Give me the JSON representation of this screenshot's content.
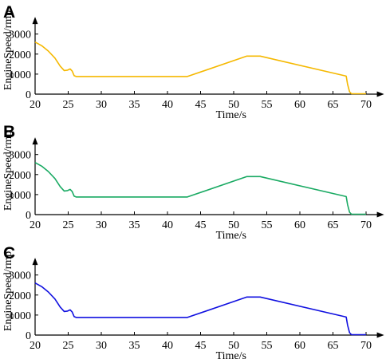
{
  "chart_data": [
    {
      "type": "line",
      "panel_label": "A",
      "xlabel": "Time/s",
      "ylabel": "EngineSpeed/rmp",
      "xlim": [
        20,
        72
      ],
      "ylim": [
        0,
        3700
      ],
      "xticks": [
        20,
        25,
        30,
        35,
        40,
        45,
        50,
        55,
        60,
        65,
        70
      ],
      "yticks": [
        0,
        1000,
        2000,
        3000
      ],
      "grid": false,
      "color": "#f5b800",
      "series": [
        {
          "x": [
            20,
            21,
            22,
            23,
            23.8,
            24.4,
            24.9,
            25.3,
            25.6,
            25.9,
            26.2,
            43,
            52,
            54,
            67,
            67.2,
            67.5,
            67.8,
            70
          ],
          "y": [
            2600,
            2420,
            2150,
            1800,
            1400,
            1180,
            1200,
            1260,
            1150,
            920,
            880,
            880,
            1900,
            1900,
            900,
            500,
            120,
            20,
            20
          ]
        }
      ]
    },
    {
      "type": "line",
      "panel_label": "B",
      "xlabel": "Time/s",
      "ylabel": "EngineSpeed/rmp",
      "xlim": [
        20,
        72
      ],
      "ylim": [
        0,
        3700
      ],
      "xticks": [
        20,
        25,
        30,
        35,
        40,
        45,
        50,
        55,
        60,
        65,
        70
      ],
      "yticks": [
        0,
        1000,
        2000,
        3000
      ],
      "grid": false,
      "color": "#1aaa63",
      "series": [
        {
          "x": [
            20,
            21,
            22,
            23,
            23.8,
            24.4,
            24.9,
            25.3,
            25.6,
            25.9,
            26.2,
            43,
            52,
            54,
            67,
            67.2,
            67.5,
            67.8,
            70
          ],
          "y": [
            2600,
            2420,
            2150,
            1800,
            1400,
            1180,
            1200,
            1260,
            1150,
            920,
            880,
            880,
            1900,
            1900,
            900,
            500,
            120,
            20,
            20
          ]
        }
      ]
    },
    {
      "type": "line",
      "panel_label": "C",
      "xlabel": "Time/s",
      "ylabel": "EngineSpeed/rmp",
      "xlim": [
        20,
        72
      ],
      "ylim": [
        0,
        3700
      ],
      "xticks": [
        20,
        25,
        30,
        35,
        40,
        45,
        50,
        55,
        60,
        65,
        70
      ],
      "yticks": [
        0,
        1000,
        2000,
        3000
      ],
      "grid": false,
      "color": "#1010e0",
      "series": [
        {
          "x": [
            20,
            21,
            22,
            23,
            23.8,
            24.4,
            24.9,
            25.3,
            25.6,
            25.9,
            26.2,
            43,
            52,
            54,
            67,
            67.2,
            67.5,
            67.8,
            70
          ],
          "y": [
            2600,
            2420,
            2150,
            1800,
            1400,
            1180,
            1200,
            1260,
            1150,
            920,
            880,
            880,
            1900,
            1900,
            900,
            500,
            120,
            20,
            20
          ]
        }
      ]
    }
  ]
}
